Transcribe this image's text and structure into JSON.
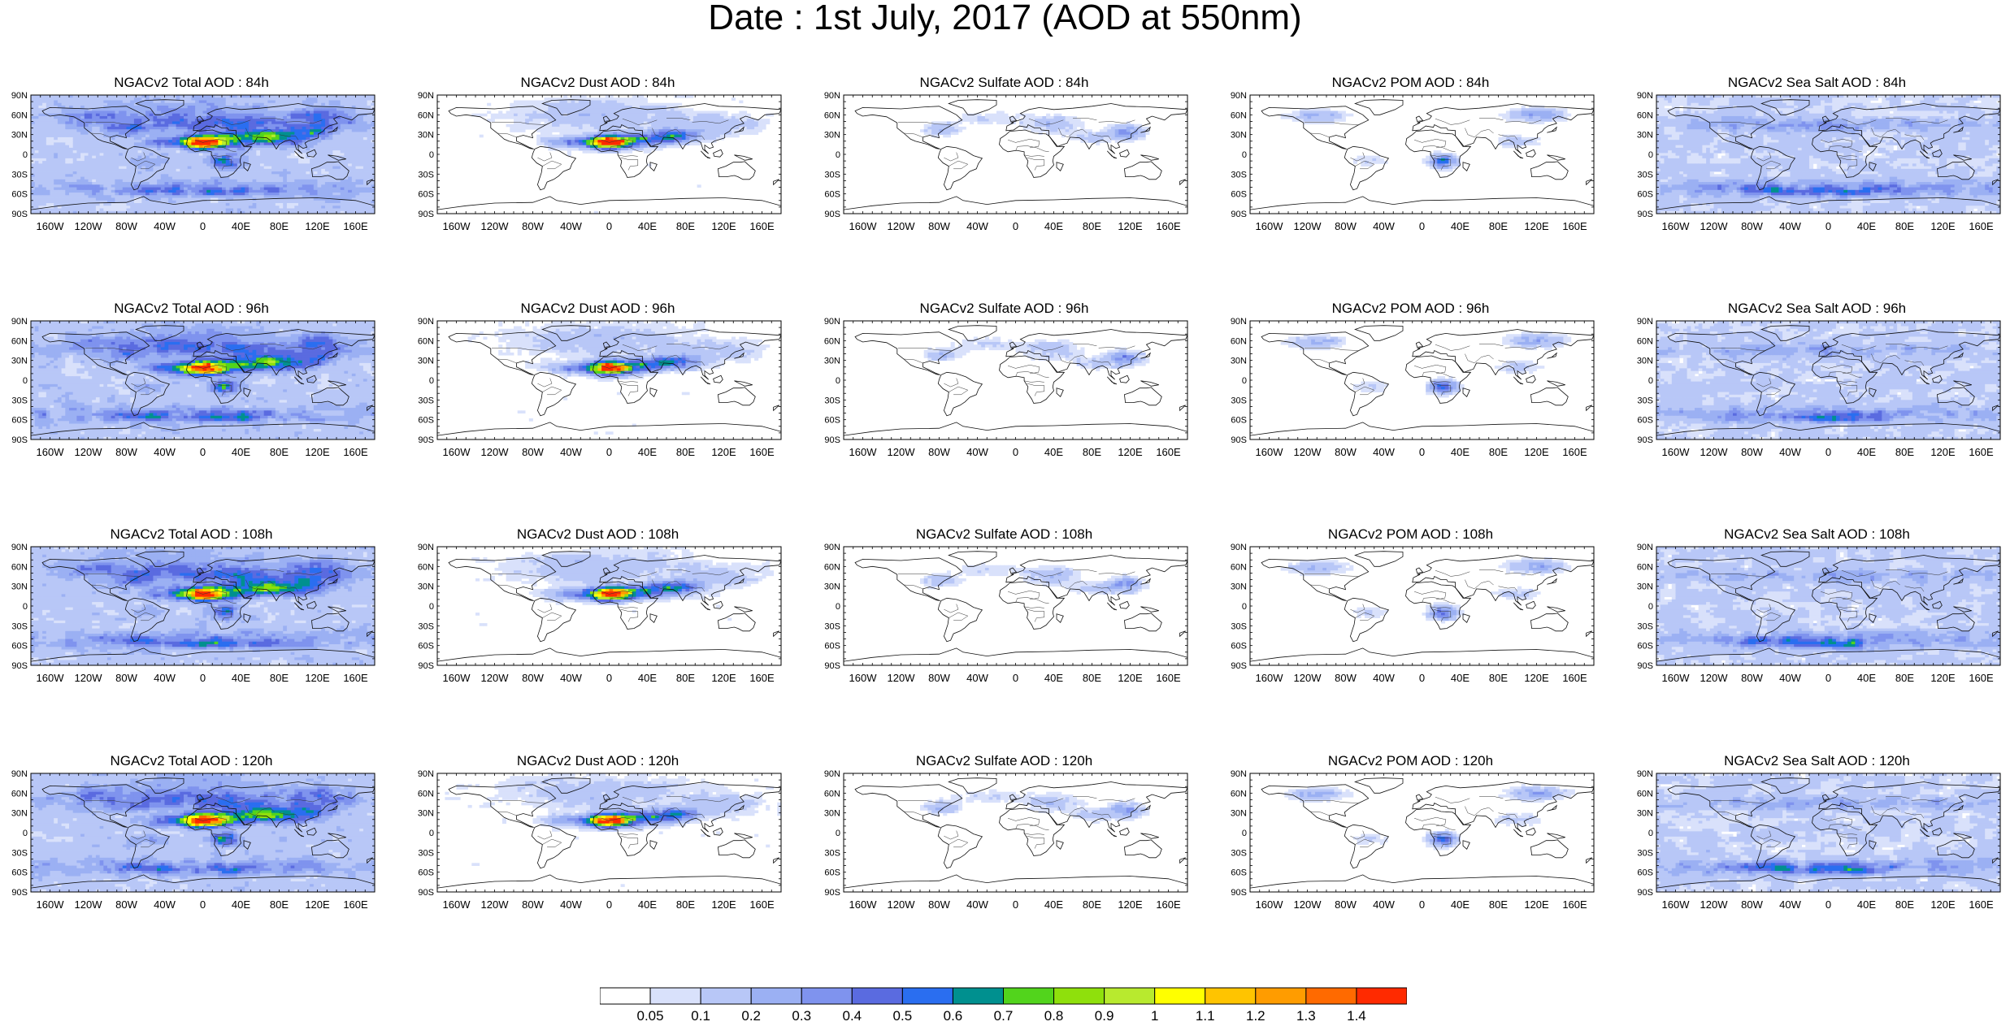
{
  "title": "Date : 1st July, 2017 (AOD at 550nm)",
  "lat_labels": [
    "90N",
    "60N",
    "30N",
    "0",
    "30S",
    "60S",
    "90S"
  ],
  "lon_labels": [
    "160W",
    "120W",
    "80W",
    "40W",
    "0",
    "40E",
    "80E",
    "120E",
    "160E"
  ],
  "columns": [
    {
      "species": "total",
      "accent": "total"
    },
    {
      "species": "dust",
      "accent": "dust"
    },
    {
      "species": "sulfate",
      "accent": "sulfate"
    },
    {
      "species": "pom",
      "accent": "pom"
    },
    {
      "species": "seasalt",
      "accent": "seasalt"
    }
  ],
  "panels": [
    [
      "NGACv2 Total AOD : 84h",
      "NGACv2 Dust AOD : 84h",
      "NGACv2 Sulfate AOD : 84h",
      "NGACv2 POM AOD : 84h",
      "NGACv2 Sea Salt AOD : 84h"
    ],
    [
      "NGACv2 Total AOD : 96h",
      "NGACv2 Dust AOD : 96h",
      "NGACv2 Sulfate AOD : 96h",
      "NGACv2 POM AOD : 96h",
      "NGACv2 Sea Salt AOD : 96h"
    ],
    [
      "NGACv2 Total AOD : 108h",
      "NGACv2 Dust AOD : 108h",
      "NGACv2 Sulfate AOD : 108h",
      "NGACv2 POM AOD : 108h",
      "NGACv2 Sea Salt AOD : 108h"
    ],
    [
      "NGACv2 Total AOD : 120h",
      "NGACv2 Dust AOD : 120h",
      "NGACv2 Sulfate AOD : 120h",
      "NGACv2 POM AOD : 120h",
      "NGACv2 Sea Salt  AOD : 120h"
    ]
  ],
  "colorbar": {
    "labels": [
      "0.05",
      "0.1",
      "0.2",
      "0.3",
      "0.4",
      "0.5",
      "0.6",
      "0.7",
      "0.8",
      "0.9",
      "1",
      "1.1",
      "1.2",
      "1.3",
      "1.4"
    ],
    "colors": [
      "#ffffff",
      "#d9e1fb",
      "#b8c7f7",
      "#9bb0f3",
      "#7f93ee",
      "#5a6be0",
      "#2a6ef0",
      "#00908f",
      "#52d41c",
      "#8fe00c",
      "#b8ea2e",
      "#ffff00",
      "#ffc400",
      "#ff9c00",
      "#ff6a00",
      "#ff2a00"
    ]
  }
}
